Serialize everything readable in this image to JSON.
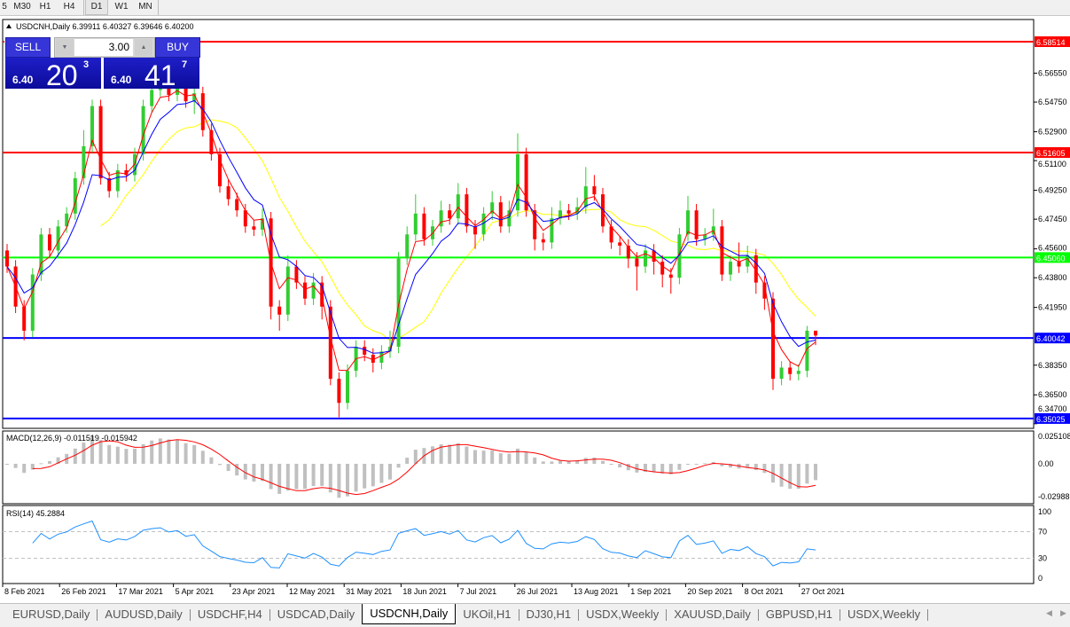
{
  "timeframes": {
    "items": [
      "5",
      "M30",
      "H1",
      "H4",
      "D1",
      "W1",
      "MN"
    ],
    "active": "D1"
  },
  "chart": {
    "header": "USDCNH,Daily  6.39911 6.40327 6.39646 6.40200",
    "trade_panel": {
      "sell_label": "SELL",
      "buy_label": "BUY",
      "volume": "3.00",
      "sell_prefix": "6.40",
      "sell_big": "20",
      "sell_sup": "3",
      "buy_prefix": "6.40",
      "buy_big": "41",
      "buy_sup": "7"
    },
    "price_axis_ticks": [
      "6.56550",
      "6.54750",
      "6.52900",
      "6.51100",
      "6.49250",
      "6.47450",
      "6.45600",
      "6.43800",
      "6.41950",
      "6.38350",
      "6.36500",
      "6.34700"
    ],
    "price_axis_values": [
      6.5655,
      6.5475,
      6.529,
      6.511,
      6.4925,
      6.4745,
      6.456,
      6.438,
      6.4195,
      6.3835,
      6.365,
      6.347
    ],
    "horizontal_lines": [
      {
        "label": "6.58514",
        "value": 6.58514,
        "color": "#ff0000"
      },
      {
        "label": "6.51605",
        "value": 6.51605,
        "color": "#ff0000"
      },
      {
        "label": "6.45060",
        "value": 6.4506,
        "color": "#00ff00"
      },
      {
        "label": "6.40042",
        "value": 6.40042,
        "color": "#0000ff"
      },
      {
        "label": "6.35025",
        "value": 6.35025,
        "color": "#0000ff"
      }
    ],
    "colors": {
      "bull": "#32cd32",
      "bear": "#ff0000",
      "ma_fast": "#ff0000",
      "ma_mid": "#0000ff",
      "ma_slow": "#ffff00",
      "macd_hist": "#c0c0c0",
      "macd_signal": "#ff0000",
      "rsi": "#1e90ff"
    },
    "date_labels": [
      "8 Feb 2021",
      "26 Feb 2021",
      "17 Mar 2021",
      "5 Apr 2021",
      "23 Apr 2021",
      "12 May 2021",
      "31 May 2021",
      "18 Jun 2021",
      "7 Jul 2021",
      "26 Jul 2021",
      "13 Aug 2021",
      "1 Sep 2021",
      "20 Sep 2021",
      "8 Oct 2021",
      "27 Oct 2021"
    ]
  },
  "chart_data": {
    "type": "candlestick",
    "symbol": "USDCNH",
    "timeframe": "Daily",
    "ylim": [
      6.347,
      6.5851
    ],
    "first_open": 6.455,
    "close": [
      6.445,
      6.42,
      6.405,
      6.44,
      6.465,
      6.455,
      6.47,
      6.478,
      6.5,
      6.52,
      6.545,
      6.5,
      6.492,
      6.505,
      6.502,
      6.515,
      6.545,
      6.555,
      6.56,
      6.552,
      6.558,
      6.548,
      6.553,
      6.53,
      6.515,
      6.495,
      6.487,
      6.48,
      6.47,
      6.468,
      6.475,
      6.42,
      6.415,
      6.445,
      6.435,
      6.425,
      6.435,
      6.42,
      6.375,
      6.36,
      6.38,
      6.395,
      6.39,
      6.385,
      6.392,
      6.395,
      6.45,
      6.465,
      6.478,
      6.462,
      6.47,
      6.48,
      6.475,
      6.49,
      6.47,
      6.465,
      6.478,
      6.485,
      6.47,
      6.48,
      6.515,
      6.48,
      6.462,
      6.46,
      6.475,
      6.48,
      6.478,
      6.482,
      6.495,
      6.49,
      6.47,
      6.46,
      6.458,
      6.45,
      6.445,
      6.455,
      6.448,
      6.44,
      6.438,
      6.465,
      6.48,
      6.462,
      6.465,
      6.47,
      6.44,
      6.448,
      6.445,
      6.452,
      6.435,
      6.425,
      6.375,
      6.382,
      6.378,
      6.38,
      6.405,
      6.402
    ],
    "high": [
      6.459,
      6.449,
      6.424,
      6.444,
      6.469,
      6.469,
      6.474,
      6.482,
      6.504,
      6.53,
      6.549,
      6.549,
      6.504,
      6.509,
      6.509,
      6.519,
      6.549,
      6.562,
      6.566,
      6.564,
      6.566,
      6.562,
      6.557,
      6.557,
      6.534,
      6.519,
      6.499,
      6.491,
      6.484,
      6.474,
      6.481,
      6.479,
      6.424,
      6.452,
      6.449,
      6.439,
      6.441,
      6.439,
      6.424,
      6.379,
      6.384,
      6.399,
      6.399,
      6.394,
      6.396,
      6.405,
      6.454,
      6.47,
      6.49,
      6.482,
      6.474,
      6.486,
      6.484,
      6.497,
      6.494,
      6.474,
      6.482,
      6.492,
      6.489,
      6.486,
      6.528,
      6.519,
      6.484,
      6.466,
      6.482,
      6.486,
      6.484,
      6.488,
      6.507,
      6.502,
      6.494,
      6.474,
      6.464,
      6.462,
      6.454,
      6.459,
      6.459,
      6.452,
      6.444,
      6.469,
      6.489,
      6.484,
      6.469,
      6.481,
      6.474,
      6.452,
      6.46,
      6.458,
      6.456,
      6.439,
      6.429,
      6.386,
      6.386,
      6.384,
      6.408,
      6.403
    ],
    "low": [
      6.441,
      6.416,
      6.399,
      6.401,
      6.436,
      6.451,
      6.451,
      6.466,
      6.474,
      6.496,
      6.516,
      6.496,
      6.488,
      6.488,
      6.498,
      6.498,
      6.511,
      6.541,
      6.551,
      6.548,
      6.548,
      6.544,
      6.54,
      6.526,
      6.511,
      6.491,
      6.483,
      6.476,
      6.466,
      6.464,
      6.464,
      6.412,
      6.405,
      6.411,
      6.431,
      6.421,
      6.421,
      6.412,
      6.371,
      6.351,
      6.356,
      6.376,
      6.386,
      6.379,
      6.381,
      6.388,
      6.391,
      6.446,
      6.461,
      6.458,
      6.458,
      6.466,
      6.471,
      6.471,
      6.466,
      6.456,
      6.461,
      6.474,
      6.466,
      6.466,
      6.476,
      6.476,
      6.455,
      6.455,
      6.456,
      6.471,
      6.474,
      6.474,
      6.478,
      6.486,
      6.466,
      6.456,
      6.452,
      6.444,
      6.43,
      6.441,
      6.44,
      6.432,
      6.428,
      6.434,
      6.461,
      6.458,
      6.458,
      6.461,
      6.436,
      6.436,
      6.441,
      6.441,
      6.428,
      6.418,
      6.368,
      6.371,
      6.374,
      6.374,
      6.376,
      6.396
    ],
    "indicators": {
      "macd": {
        "label": "MACD(12,26,9) -0.011519 -0.015942",
        "ticks": [
          "0.025108",
          "0.00",
          "-0.02988"
        ],
        "ylim": [
          -0.02988,
          0.025108
        ]
      },
      "rsi": {
        "label": "RSI(14) 45.2884",
        "ticks": [
          "100",
          "70",
          "30",
          "0"
        ],
        "levels": [
          70,
          30
        ],
        "ylim": [
          0,
          100
        ]
      }
    }
  },
  "tabs": {
    "items": [
      "EURUSD,Daily",
      "AUDUSD,Daily",
      "USDCHF,H4",
      "USDCAD,Daily",
      "USDCNH,Daily",
      "UKOil,H1",
      "DJ30,H1",
      "USDX,Weekly",
      "XAUUSD,Daily",
      "GBPUSD,H1",
      "USDX,Weekly"
    ],
    "active": "USDCNH,Daily"
  }
}
